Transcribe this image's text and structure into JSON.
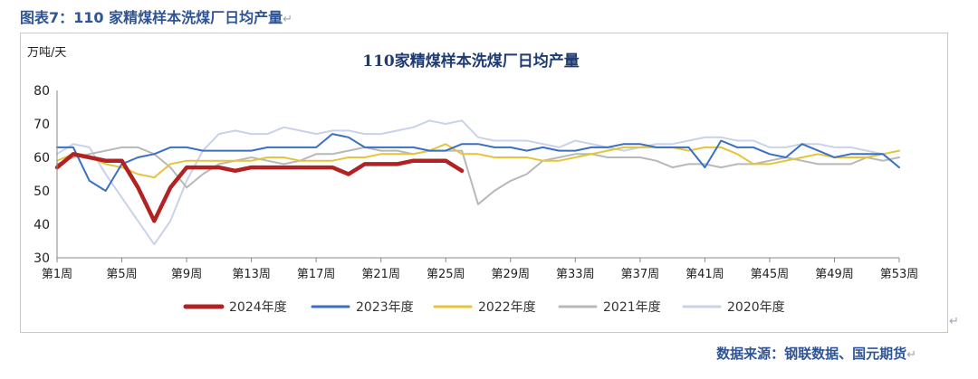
{
  "caption": {
    "text": "图表7：110 家精煤样本洗煤厂日均产量",
    "mark": "↵"
  },
  "source": {
    "text": "数据来源：钢联数据、国元期货",
    "mark": "↵"
  },
  "corner_mark": "↵",
  "colors": {
    "s2024": "#b22222",
    "s2023": "#3a6fc4",
    "s2022": "#e6c43a",
    "s2021": "#b8b8b8",
    "s2020": "#c9d2ea",
    "title": "#1f3b73"
  },
  "chart_data": {
    "type": "line",
    "title": "110家精煤样本洗煤厂日均产量",
    "ylabel": "万吨/天",
    "ylim": [
      30,
      80
    ],
    "yticks": [
      30,
      40,
      50,
      60,
      70,
      80
    ],
    "xlim": [
      1,
      53
    ],
    "xticks": [
      {
        "x": 1,
        "label": "第1周"
      },
      {
        "x": 5,
        "label": "第5周"
      },
      {
        "x": 9,
        "label": "第9周"
      },
      {
        "x": 13,
        "label": "第13周"
      },
      {
        "x": 17,
        "label": "第17周"
      },
      {
        "x": 21,
        "label": "第21周"
      },
      {
        "x": 25,
        "label": "第25周"
      },
      {
        "x": 29,
        "label": "第29周"
      },
      {
        "x": 33,
        "label": "第33周"
      },
      {
        "x": 37,
        "label": "第37周"
      },
      {
        "x": 41,
        "label": "第41周"
      },
      {
        "x": 45,
        "label": "第45周"
      },
      {
        "x": 49,
        "label": "第49周"
      },
      {
        "x": 53,
        "label": "第53周"
      }
    ],
    "series": [
      {
        "name": "2020年度",
        "key": "s2020",
        "width": 2,
        "values": [
          61,
          64,
          63,
          55,
          48,
          41,
          34,
          41,
          53,
          62,
          67,
          68,
          67,
          67,
          69,
          68,
          67,
          68,
          68,
          67,
          67,
          68,
          69,
          71,
          70,
          71,
          66,
          65,
          65,
          65,
          64,
          63,
          65,
          64,
          63,
          62,
          63,
          64,
          64,
          65,
          66,
          66,
          65,
          65,
          63,
          63,
          64,
          64,
          63,
          63,
          62,
          61,
          null
        ]
      },
      {
        "name": "2021年度",
        "key": "s2021",
        "width": 2,
        "values": [
          58,
          60,
          61,
          62,
          63,
          63,
          61,
          57,
          51,
          55,
          58,
          59,
          60,
          59,
          58,
          59,
          61,
          61,
          62,
          63,
          62,
          62,
          61,
          62,
          62,
          62,
          46,
          50,
          53,
          55,
          59,
          60,
          61,
          61,
          60,
          60,
          60,
          59,
          57,
          58,
          58,
          57,
          58,
          58,
          59,
          60,
          59,
          58,
          58,
          58,
          60,
          59,
          60
        ]
      },
      {
        "name": "2022年度",
        "key": "s2022",
        "width": 2,
        "values": [
          59,
          61,
          60,
          58,
          57,
          55,
          54,
          58,
          59,
          59,
          59,
          59,
          59,
          60,
          60,
          59,
          59,
          59,
          60,
          60,
          61,
          61,
          61,
          62,
          64,
          61,
          61,
          60,
          60,
          60,
          59,
          59,
          60,
          61,
          62,
          63,
          63,
          63,
          63,
          62,
          63,
          63,
          61,
          58,
          58,
          59,
          60,
          61,
          60,
          60,
          60,
          61,
          62
        ]
      },
      {
        "name": "2023年度",
        "key": "s2023",
        "width": 2,
        "values": [
          63,
          63,
          53,
          50,
          58,
          60,
          61,
          63,
          63,
          62,
          62,
          62,
          62,
          63,
          63,
          63,
          63,
          67,
          66,
          63,
          63,
          63,
          63,
          62,
          62,
          64,
          64,
          63,
          63,
          62,
          63,
          62,
          62,
          63,
          63,
          64,
          64,
          63,
          63,
          63,
          57,
          65,
          63,
          63,
          61,
          60,
          64,
          62,
          60,
          61,
          61,
          61,
          57
        ]
      },
      {
        "name": "2024年度",
        "key": "s2024",
        "width": 4.5,
        "values": [
          57,
          61,
          60,
          59,
          59,
          51,
          41,
          51,
          57,
          57,
          57,
          56,
          57,
          57,
          57,
          57,
          57,
          57,
          55,
          58,
          58,
          58,
          59,
          59,
          59,
          56,
          null,
          null,
          null,
          null,
          null,
          null,
          null,
          null,
          null,
          null,
          null,
          null,
          null,
          null,
          null,
          null,
          null,
          null,
          null,
          null,
          null,
          null,
          null,
          null,
          null,
          null,
          null
        ]
      }
    ],
    "legend_order": [
      "2024年度",
      "2023年度",
      "2022年度",
      "2021年度",
      "2020年度"
    ],
    "legend_position": "bottom"
  }
}
